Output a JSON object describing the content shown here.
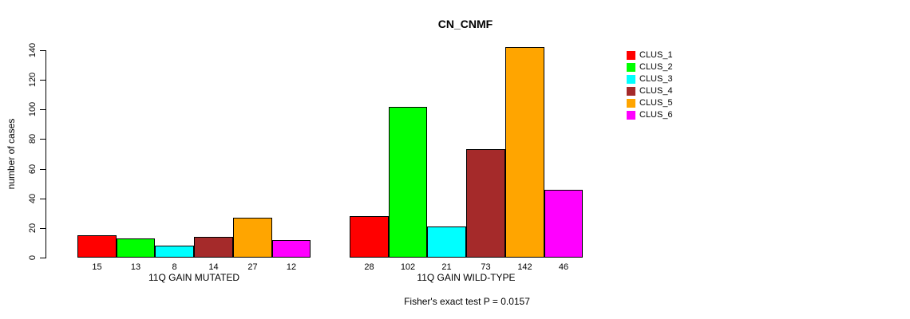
{
  "chart_data": {
    "type": "bar",
    "title": "CN_CNMF",
    "ylabel": "number of cases",
    "ylim": [
      0,
      140
    ],
    "yticks": [
      0,
      20,
      40,
      60,
      80,
      100,
      120,
      140
    ],
    "grid": false,
    "legend_position": "right",
    "series": [
      {
        "name": "CLUS_1",
        "color": "#ff0000"
      },
      {
        "name": "CLUS_2",
        "color": "#00ff00"
      },
      {
        "name": "CLUS_3",
        "color": "#00ffff"
      },
      {
        "name": "CLUS_4",
        "color": "#a52a2a"
      },
      {
        "name": "CLUS_5",
        "color": "#ffa500"
      },
      {
        "name": "CLUS_6",
        "color": "#ff00ff"
      }
    ],
    "groups": [
      {
        "label": "11Q GAIN MUTATED",
        "values": [
          15,
          13,
          8,
          14,
          27,
          12
        ]
      },
      {
        "label": "11Q GAIN WILD-TYPE",
        "values": [
          28,
          102,
          21,
          73,
          142,
          46
        ]
      }
    ],
    "footnote": "Fisher's exact test P = 0.0157"
  }
}
